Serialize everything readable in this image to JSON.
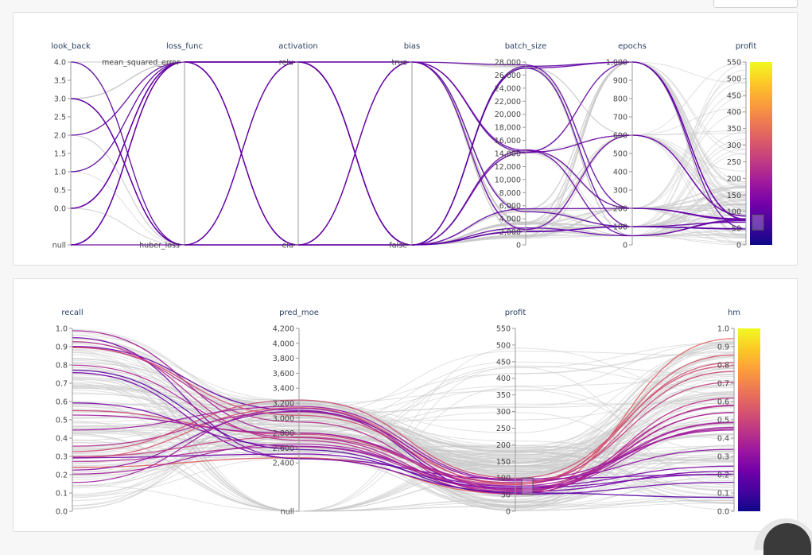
{
  "page": {
    "colors": {
      "line_grey": "#c8c8c8",
      "highlight_purple": "#5c06a0",
      "highlight_magenta": "#b42c9a",
      "colorscale": [
        "#0d0887",
        "#46039f",
        "#7201a8",
        "#9c179e",
        "#bd3786",
        "#d8576b",
        "#ed7953",
        "#fb9f3a",
        "#fdca26",
        "#f0f921"
      ]
    }
  },
  "chart_data": [
    {
      "type": "parallel_coordinates",
      "color_by": "profit",
      "colorscale": "plasma",
      "dimensions": [
        {
          "name": "look_back",
          "kind": "numeric",
          "range": [
            0,
            4
          ],
          "ticks": [
            "4.0",
            "3.5",
            "3.0",
            "2.5",
            "2.0",
            "1.5",
            "1.0",
            "0.5",
            "0.0"
          ],
          "extra_label": "null"
        },
        {
          "name": "loss_func",
          "kind": "categorical",
          "categories": [
            "mean_squared_error",
            "huber_loss"
          ]
        },
        {
          "name": "activation",
          "kind": "categorical",
          "categories": [
            "relu",
            "elu"
          ]
        },
        {
          "name": "bias",
          "kind": "categorical",
          "categories": [
            "true",
            "false"
          ]
        },
        {
          "name": "batch_size",
          "kind": "numeric",
          "range": [
            0,
            28000
          ],
          "ticks": [
            "28,000",
            "26,000",
            "24,000",
            "22,000",
            "20,000",
            "18,000",
            "16,000",
            "14,000",
            "12,000",
            "10,000",
            "8,000",
            "6,000",
            "4,000",
            "2,000",
            "0"
          ]
        },
        {
          "name": "epochs",
          "kind": "numeric",
          "range": [
            0,
            1000
          ],
          "ticks": [
            "1,000",
            "900",
            "800",
            "700",
            "600",
            "500",
            "400",
            "300",
            "200",
            "100",
            "0"
          ]
        },
        {
          "name": "profit",
          "kind": "numeric",
          "range": [
            0,
            550
          ],
          "ticks": [
            "550",
            "500",
            "450",
            "400",
            "350",
            "300",
            "250",
            "200",
            "150",
            "100",
            "50",
            "0"
          ],
          "brush": [
            45,
            90
          ],
          "colorbar": true
        }
      ]
    },
    {
      "type": "parallel_coordinates",
      "color_by": "hm",
      "colorscale": "plasma",
      "dimensions": [
        {
          "name": "recall",
          "kind": "numeric",
          "range": [
            0,
            1
          ],
          "ticks": [
            "1.0",
            "0.9",
            "0.8",
            "0.7",
            "0.6",
            "0.5",
            "0.4",
            "0.3",
            "0.2",
            "0.1",
            "0.0"
          ]
        },
        {
          "name": "pred_moe",
          "kind": "numeric",
          "range": [
            2200,
            4200
          ],
          "ticks": [
            "4,200",
            "4,000",
            "3,800",
            "3,600",
            "3,400",
            "3,200",
            "3,000",
            "2,800",
            "2,600",
            "2,400"
          ],
          "extra_label": "null"
        },
        {
          "name": "profit",
          "kind": "numeric",
          "range": [
            0,
            550
          ],
          "ticks": [
            "550",
            "500",
            "450",
            "400",
            "350",
            "300",
            "250",
            "200",
            "150",
            "100",
            "50",
            "0"
          ],
          "brush": [
            50,
            100
          ]
        },
        {
          "name": "hm",
          "kind": "numeric",
          "range": [
            0,
            1
          ],
          "ticks": [
            "1.0",
            "0.9",
            "0.8",
            "0.7",
            "0.6",
            "0.5",
            "0.4",
            "0.3",
            "0.2",
            "0.1",
            "0.0"
          ],
          "colorbar": true
        }
      ]
    }
  ]
}
